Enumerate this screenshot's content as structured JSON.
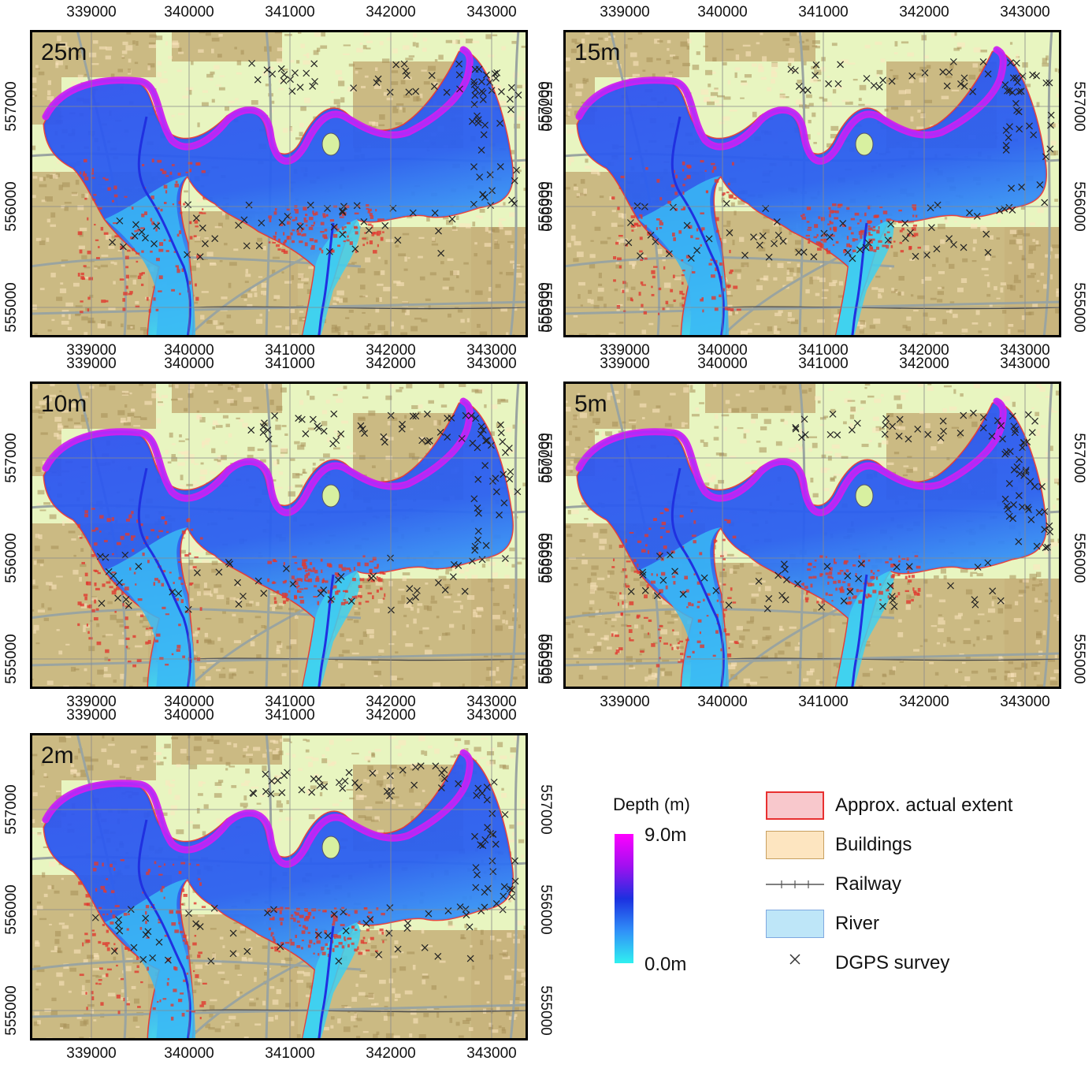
{
  "panels": [
    {
      "label": "25m"
    },
    {
      "label": "15m"
    },
    {
      "label": "10m"
    },
    {
      "label": "5m"
    },
    {
      "label": "2m"
    }
  ],
  "x_ticks": [
    "339000",
    "340000",
    "341000",
    "342000",
    "343000"
  ],
  "y_ticks": [
    "557000",
    "556000",
    "555000"
  ],
  "legend": {
    "depth_title": "Depth (m)",
    "depth_max": "9.0m",
    "depth_min": "0.0m",
    "items": [
      {
        "label": "Approx. actual extent",
        "icon": "extent-swatch"
      },
      {
        "label": "Buildings",
        "icon": "building-swatch"
      },
      {
        "label": "Railway",
        "icon": "railway-line-icon"
      },
      {
        "label": "River",
        "icon": "river-swatch"
      },
      {
        "label": "DGPS survey",
        "icon": "cross-marker-icon"
      }
    ]
  },
  "colors": {
    "depth_high": "#ff00ff",
    "depth_mid": "#2240f0",
    "depth_low": "#30e0f0",
    "background": "#e8f5c0",
    "buildings": "#b09a60",
    "extent": "#e83030"
  }
}
